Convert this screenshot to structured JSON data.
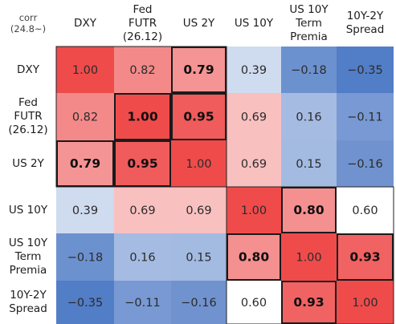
{
  "chart_data": {
    "type": "heatmap",
    "corner_label": "corr\n(24.8~)",
    "columns": [
      "DXY",
      "Fed\nFUTR\n(26.12)",
      "US 2Y",
      "US 10Y",
      "US 10Y\nTerm\nPremia",
      "10Y-2Y\nSpread"
    ],
    "rows": [
      "DXY",
      "Fed\nFUTR\n(26.12)",
      "US 2Y",
      "US 10Y",
      "US 10Y\nTerm\nPremia",
      "10Y-2Y\nSpread"
    ],
    "values": [
      [
        1.0,
        0.82,
        0.79,
        0.39,
        -0.18,
        -0.35
      ],
      [
        0.82,
        1.0,
        0.95,
        0.69,
        0.16,
        -0.11
      ],
      [
        0.79,
        0.95,
        1.0,
        0.69,
        0.15,
        -0.16
      ],
      [
        0.39,
        0.69,
        0.69,
        1.0,
        0.8,
        0.6
      ],
      [
        -0.18,
        0.16,
        0.15,
        0.8,
        1.0,
        0.93
      ],
      [
        -0.35,
        -0.11,
        -0.16,
        0.6,
        0.93,
        1.0
      ]
    ],
    "labels": [
      [
        "1.00",
        "0.82",
        "0.79",
        "0.39",
        "−0.18",
        "−0.35"
      ],
      [
        "0.82",
        "1.00",
        "0.95",
        "0.69",
        "0.16",
        "−0.11"
      ],
      [
        "0.79",
        "0.95",
        "1.00",
        "0.69",
        "0.15",
        "−0.16"
      ],
      [
        "0.39",
        "0.69",
        "0.69",
        "1.00",
        "0.80",
        "0.60"
      ],
      [
        "−0.18",
        "0.16",
        "0.15",
        "0.80",
        "1.00",
        "0.93"
      ],
      [
        "−0.35",
        "−0.11",
        "−0.16",
        "0.60",
        "0.93",
        "1.00"
      ]
    ],
    "highlighted_cells": [
      [
        0,
        2
      ],
      [
        1,
        1
      ],
      [
        1,
        2
      ],
      [
        2,
        0
      ],
      [
        2,
        1
      ],
      [
        3,
        4
      ],
      [
        4,
        3
      ],
      [
        4,
        5
      ],
      [
        5,
        4
      ]
    ],
    "highlight_groups": [
      [
        0,
        2,
        0,
        2
      ],
      [
        3,
        5,
        3,
        5
      ]
    ],
    "color_scale": {
      "min": -0.4,
      "mid": 0.6,
      "max": 1.0,
      "low": "#4a77c4",
      "mid_color": "#ffffff",
      "high": "#ef4b4b"
    }
  }
}
